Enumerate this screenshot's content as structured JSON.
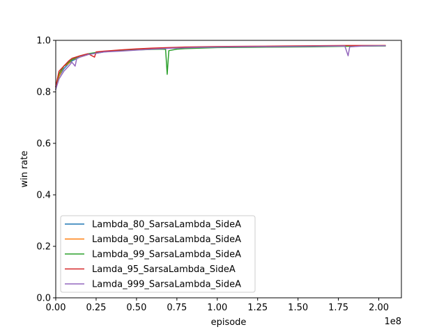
{
  "chart_data": {
    "type": "line",
    "title": "",
    "xlabel": "episode",
    "ylabel": "win rate",
    "x_offset_text": "1e8",
    "xlim": [
      0,
      2.14
    ],
    "ylim": [
      0.0,
      1.0
    ],
    "xticks": [
      0.0,
      0.25,
      0.5,
      0.75,
      1.0,
      1.25,
      1.5,
      1.75,
      2.0
    ],
    "xtick_labels": [
      "0.00",
      "0.25",
      "0.50",
      "0.75",
      "1.00",
      "1.25",
      "1.50",
      "1.75",
      "2.00"
    ],
    "yticks": [
      0.0,
      0.2,
      0.4,
      0.6,
      0.8,
      1.0
    ],
    "ytick_labels": [
      "0.0",
      "0.2",
      "0.4",
      "0.6",
      "0.8",
      "1.0"
    ],
    "grid": false,
    "legend_position": "lower-left",
    "series": [
      {
        "name": "Lambda_80_SarsaLambda_SideA",
        "color": "#1f77b4",
        "points": [
          [
            0.0,
            0.81
          ],
          [
            0.02,
            0.86
          ],
          [
            0.05,
            0.89
          ],
          [
            0.08,
            0.91
          ],
          [
            0.1,
            0.92
          ],
          [
            0.15,
            0.935
          ],
          [
            0.2,
            0.945
          ],
          [
            0.25,
            0.95
          ],
          [
            0.3,
            0.955
          ],
          [
            0.4,
            0.96
          ],
          [
            0.5,
            0.965
          ],
          [
            0.6,
            0.968
          ],
          [
            0.7,
            0.97
          ],
          [
            0.8,
            0.972
          ],
          [
            0.9,
            0.973
          ],
          [
            1.0,
            0.974
          ],
          [
            1.2,
            0.975
          ],
          [
            1.4,
            0.976
          ],
          [
            1.6,
            0.977
          ],
          [
            1.8,
            0.978
          ],
          [
            2.0,
            0.979
          ],
          [
            2.04,
            0.979
          ]
        ]
      },
      {
        "name": "Lambda_90_SarsaLambda_SideA",
        "color": "#ff7f0e",
        "points": [
          [
            0.0,
            0.82
          ],
          [
            0.02,
            0.86
          ],
          [
            0.05,
            0.9
          ],
          [
            0.08,
            0.91
          ],
          [
            0.1,
            0.925
          ],
          [
            0.15,
            0.935
          ],
          [
            0.2,
            0.945
          ],
          [
            0.25,
            0.952
          ],
          [
            0.3,
            0.957
          ],
          [
            0.4,
            0.962
          ],
          [
            0.5,
            0.966
          ],
          [
            0.6,
            0.969
          ],
          [
            0.7,
            0.971
          ],
          [
            0.8,
            0.973
          ],
          [
            0.9,
            0.974
          ],
          [
            1.0,
            0.975
          ],
          [
            1.2,
            0.976
          ],
          [
            1.4,
            0.977
          ],
          [
            1.6,
            0.978
          ],
          [
            1.8,
            0.979
          ],
          [
            2.0,
            0.979
          ],
          [
            2.04,
            0.98
          ]
        ]
      },
      {
        "name": "Lambda_99_SarsaLambda_SideA",
        "color": "#2ca02c",
        "points": [
          [
            0.0,
            0.82
          ],
          [
            0.02,
            0.87
          ],
          [
            0.05,
            0.9
          ],
          [
            0.08,
            0.915
          ],
          [
            0.1,
            0.925
          ],
          [
            0.15,
            0.94
          ],
          [
            0.2,
            0.948
          ],
          [
            0.25,
            0.953
          ],
          [
            0.3,
            0.956
          ],
          [
            0.4,
            0.96
          ],
          [
            0.5,
            0.963
          ],
          [
            0.6,
            0.965
          ],
          [
            0.66,
            0.966
          ],
          [
            0.68,
            0.965
          ],
          [
            0.69,
            0.868
          ],
          [
            0.7,
            0.96
          ],
          [
            0.75,
            0.966
          ],
          [
            0.8,
            0.968
          ],
          [
            0.9,
            0.97
          ],
          [
            1.0,
            0.972
          ],
          [
            1.2,
            0.973
          ],
          [
            1.4,
            0.974
          ],
          [
            1.6,
            0.975
          ],
          [
            1.8,
            0.977
          ],
          [
            2.0,
            0.978
          ],
          [
            2.04,
            0.978
          ]
        ]
      },
      {
        "name": "Lamda_95_SarsaLambda_SideA",
        "color": "#d62728",
        "points": [
          [
            0.0,
            0.82
          ],
          [
            0.02,
            0.88
          ],
          [
            0.05,
            0.9
          ],
          [
            0.08,
            0.92
          ],
          [
            0.1,
            0.93
          ],
          [
            0.15,
            0.94
          ],
          [
            0.2,
            0.948
          ],
          [
            0.24,
            0.935
          ],
          [
            0.25,
            0.955
          ],
          [
            0.3,
            0.958
          ],
          [
            0.4,
            0.963
          ],
          [
            0.5,
            0.967
          ],
          [
            0.6,
            0.97
          ],
          [
            0.7,
            0.972
          ],
          [
            0.8,
            0.974
          ],
          [
            0.9,
            0.975
          ],
          [
            1.0,
            0.976
          ],
          [
            1.2,
            0.977
          ],
          [
            1.4,
            0.978
          ],
          [
            1.6,
            0.979
          ],
          [
            1.8,
            0.98
          ],
          [
            2.0,
            0.98
          ],
          [
            2.04,
            0.98
          ]
        ]
      },
      {
        "name": "Lamda_999_SarsaLambda_SideA",
        "color": "#9467bd",
        "points": [
          [
            0.0,
            0.81
          ],
          [
            0.02,
            0.85
          ],
          [
            0.05,
            0.88
          ],
          [
            0.08,
            0.9
          ],
          [
            0.1,
            0.915
          ],
          [
            0.12,
            0.9
          ],
          [
            0.13,
            0.93
          ],
          [
            0.15,
            0.935
          ],
          [
            0.2,
            0.945
          ],
          [
            0.25,
            0.95
          ],
          [
            0.3,
            0.955
          ],
          [
            0.4,
            0.958
          ],
          [
            0.5,
            0.962
          ],
          [
            0.6,
            0.966
          ],
          [
            0.7,
            0.969
          ],
          [
            0.8,
            0.971
          ],
          [
            0.9,
            0.973
          ],
          [
            1.0,
            0.974
          ],
          [
            1.2,
            0.975
          ],
          [
            1.4,
            0.976
          ],
          [
            1.6,
            0.977
          ],
          [
            1.79,
            0.978
          ],
          [
            1.81,
            0.94
          ],
          [
            1.82,
            0.975
          ],
          [
            1.9,
            0.978
          ],
          [
            2.0,
            0.979
          ],
          [
            2.04,
            0.979
          ]
        ]
      }
    ]
  }
}
